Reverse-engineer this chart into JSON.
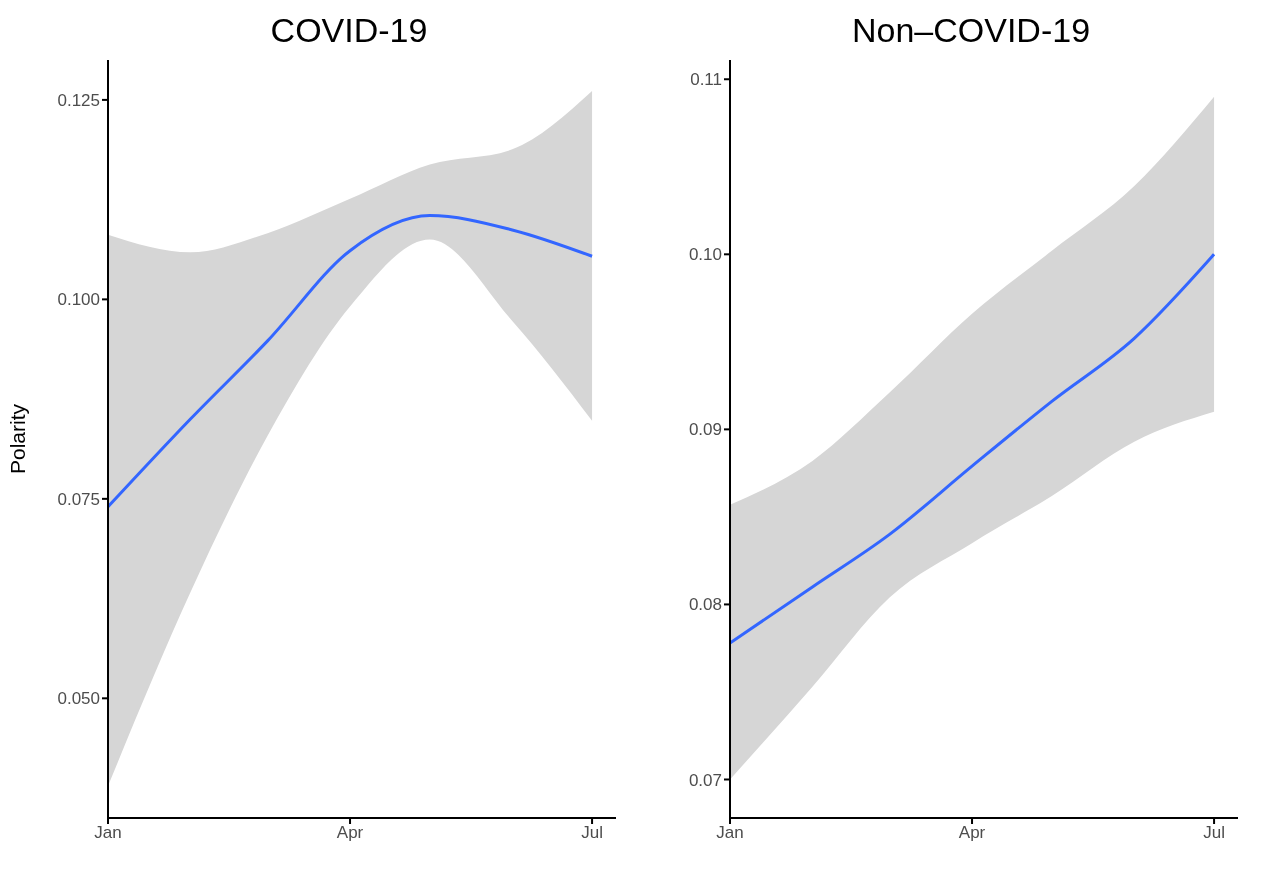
{
  "chart_data": [
    {
      "type": "line",
      "title": "COVID-19",
      "ylabel": "Polarity",
      "x": [
        "--01-01",
        "--02-01",
        "--03-01",
        "--04-01",
        "--05-01",
        "--06-01",
        "--07-01"
      ],
      "series": [
        {
          "color": "#3366ff",
          "values": [
            0.074,
            0.085,
            0.0948,
            0.1061,
            0.1105,
            0.1087,
            0.1054
          ],
          "lower": [
            0.039,
            0.0633,
            0.0829,
            0.0991,
            0.1075,
            0.0973,
            0.0848
          ],
          "upper": [
            0.1081,
            0.1059,
            0.1083,
            0.1126,
            0.1169,
            0.1188,
            0.1261
          ]
        }
      ],
      "xlim": [
        "--01-01",
        "--07-10"
      ],
      "ylim": [
        0.035,
        0.13
      ],
      "yticks": [
        {
          "value": 0.05,
          "label": "0.050"
        },
        {
          "value": 0.075,
          "label": "0.075"
        },
        {
          "value": 0.1,
          "label": "0.100"
        },
        {
          "value": 0.125,
          "label": "0.125"
        }
      ],
      "xticks": [
        {
          "value": "--01-01",
          "label": "Jan"
        },
        {
          "value": "--04-01",
          "label": "Apr"
        },
        {
          "value": "--07-01",
          "label": "Jul"
        }
      ],
      "grid": false,
      "legend": false,
      "marker": "none",
      "line_style": "solid"
    },
    {
      "type": "line",
      "title": "Non–COVID-19",
      "x": [
        "--01-01",
        "--02-01",
        "--03-01",
        "--04-01",
        "--05-01",
        "--06-01",
        "--07-01"
      ],
      "series": [
        {
          "color": "#3366ff",
          "values": [
            0.0778,
            0.081,
            0.084,
            0.0879,
            0.0916,
            0.0952,
            0.1
          ],
          "lower": [
            0.07,
            0.0753,
            0.0804,
            0.0835,
            0.0862,
            0.0893,
            0.091
          ],
          "upper": [
            0.0857,
            0.0882,
            0.0921,
            0.0966,
            0.1002,
            0.1039,
            0.109
          ]
        }
      ],
      "xlim": [
        "--01-01",
        "--07-10"
      ],
      "ylim": [
        0.0678,
        0.1111
      ],
      "yticks": [
        {
          "value": 0.07,
          "label": "0.07"
        },
        {
          "value": 0.08,
          "label": "0.08"
        },
        {
          "value": 0.09,
          "label": "0.09"
        },
        {
          "value": 0.1,
          "label": "0.10"
        },
        {
          "value": 0.11,
          "label": "0.11"
        }
      ],
      "xticks": [
        {
          "value": "--01-01",
          "label": "Jan"
        },
        {
          "value": "--04-01",
          "label": "Apr"
        },
        {
          "value": "--07-01",
          "label": "Jul"
        }
      ],
      "grid": false,
      "legend": false,
      "marker": "none",
      "line_style": "solid"
    }
  ]
}
